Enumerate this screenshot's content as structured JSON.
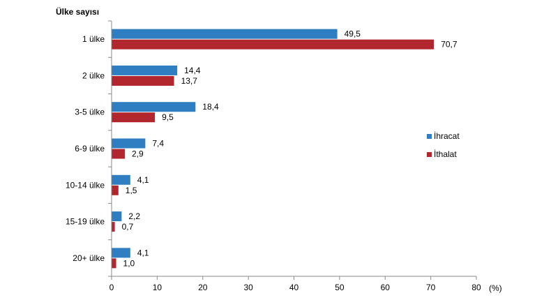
{
  "chart_data": {
    "type": "bar",
    "orientation": "horizontal",
    "ylabel": "Ülke sayısı",
    "xlabel": "(%)",
    "categories": [
      "1 ülke",
      "2 ülke",
      "3-5 ülke",
      "6-9 ülke",
      "10-14 ülke",
      "15-19 ülke",
      "20+ ülke"
    ],
    "series": [
      {
        "name": "İhracat",
        "color": "#2E7EC1",
        "values": [
          49.5,
          14.4,
          18.4,
          7.4,
          4.1,
          2.2,
          4.1
        ],
        "labels": [
          "49,5",
          "14,4",
          "18,4",
          "7,4",
          "4,1",
          "2,2",
          "4,1"
        ]
      },
      {
        "name": "İthalat",
        "color": "#B2272D",
        "values": [
          70.7,
          13.7,
          9.5,
          2.9,
          1.5,
          0.7,
          1.0
        ],
        "labels": [
          "70,7",
          "13,7",
          "9,5",
          "2,9",
          "1,5",
          "0,7",
          "1,0"
        ]
      }
    ],
    "xlim": [
      0,
      80
    ],
    "xticks": [
      0,
      10,
      20,
      30,
      40,
      50,
      60,
      70,
      80
    ],
    "grid": false,
    "legend_position": "right"
  }
}
